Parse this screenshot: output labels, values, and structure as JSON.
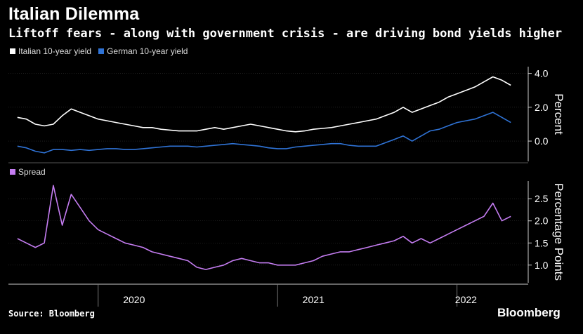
{
  "title": "Italian Dilemma",
  "subtitle": "Liftoff fears - along with government crisis - are driving bond yields higher",
  "source": "Source: Bloomberg",
  "brand": "Bloomberg",
  "colors": {
    "italian": "#ffffff",
    "german": "#2f73d6",
    "spread": "#c57df2",
    "background": "#000000"
  },
  "chart_data": [
    {
      "type": "line",
      "ylabel": "Percent",
      "ylim": [
        -1.2,
        4.4
      ],
      "yticks": [
        "4.0",
        "2.0",
        "0.0"
      ],
      "ytick_values": [
        4.0,
        2.0,
        0.0
      ],
      "legend": "top-left",
      "x": [
        2019.55,
        2019.6,
        2019.65,
        2019.7,
        2019.75,
        2019.8,
        2019.85,
        2019.9,
        2019.95,
        2020.0,
        2020.05,
        2020.1,
        2020.15,
        2020.2,
        2020.25,
        2020.3,
        2020.35,
        2020.4,
        2020.45,
        2020.5,
        2020.55,
        2020.6,
        2020.65,
        2020.7,
        2020.75,
        2020.8,
        2020.85,
        2020.9,
        2020.95,
        2021.0,
        2021.05,
        2021.1,
        2021.15,
        2021.2,
        2021.25,
        2021.3,
        2021.35,
        2021.4,
        2021.45,
        2021.5,
        2021.55,
        2021.6,
        2021.65,
        2021.7,
        2021.75,
        2021.8,
        2021.85,
        2021.9,
        2021.95,
        2022.0,
        2022.05,
        2022.1,
        2022.15,
        2022.2,
        2022.25,
        2022.3
      ],
      "series": [
        {
          "name": "Italian 10-year yield",
          "values": [
            1.4,
            1.3,
            1.0,
            0.9,
            1.0,
            1.5,
            1.9,
            1.7,
            1.5,
            1.3,
            1.2,
            1.1,
            1.0,
            0.9,
            0.8,
            0.8,
            0.7,
            0.65,
            0.6,
            0.6,
            0.6,
            0.7,
            0.8,
            0.7,
            0.8,
            0.9,
            1.0,
            0.9,
            0.8,
            0.7,
            0.6,
            0.55,
            0.6,
            0.7,
            0.75,
            0.8,
            0.9,
            1.0,
            1.1,
            1.2,
            1.3,
            1.5,
            1.7,
            2.0,
            1.7,
            1.9,
            2.1,
            2.3,
            2.6,
            2.8,
            3.0,
            3.2,
            3.5,
            3.8,
            3.6,
            3.3
          ]
        },
        {
          "name": "German 10-year yield",
          "values": [
            -0.3,
            -0.4,
            -0.6,
            -0.7,
            -0.5,
            -0.5,
            -0.55,
            -0.5,
            -0.55,
            -0.5,
            -0.45,
            -0.45,
            -0.5,
            -0.5,
            -0.45,
            -0.4,
            -0.35,
            -0.3,
            -0.3,
            -0.3,
            -0.35,
            -0.3,
            -0.25,
            -0.2,
            -0.15,
            -0.2,
            -0.25,
            -0.3,
            -0.4,
            -0.45,
            -0.45,
            -0.35,
            -0.3,
            -0.25,
            -0.2,
            -0.15,
            -0.15,
            -0.25,
            -0.3,
            -0.3,
            -0.3,
            -0.1,
            0.1,
            0.3,
            0.0,
            0.3,
            0.6,
            0.7,
            0.9,
            1.1,
            1.2,
            1.3,
            1.5,
            1.7,
            1.4,
            1.1
          ]
        }
      ]
    },
    {
      "type": "line",
      "ylabel": "Percentage Points",
      "ylim": [
        0.6,
        2.9
      ],
      "yticks": [
        "2.5",
        "2.0",
        "1.5",
        "1.0"
      ],
      "ytick_values": [
        2.5,
        2.0,
        1.5,
        1.0
      ],
      "legend": "top-left",
      "xticks": [
        "2020",
        "2021",
        "2022"
      ],
      "xtick_values": [
        2020.2,
        2021.2,
        2022.05
      ],
      "series": [
        {
          "name": "Spread",
          "values": [
            1.6,
            1.5,
            1.4,
            1.5,
            2.8,
            1.9,
            2.6,
            2.3,
            2.0,
            1.8,
            1.7,
            1.6,
            1.5,
            1.45,
            1.4,
            1.3,
            1.25,
            1.2,
            1.15,
            1.1,
            0.95,
            0.9,
            0.95,
            1.0,
            1.1,
            1.15,
            1.1,
            1.05,
            1.05,
            1.0,
            1.0,
            1.0,
            1.05,
            1.1,
            1.2,
            1.25,
            1.3,
            1.3,
            1.35,
            1.4,
            1.45,
            1.5,
            1.55,
            1.65,
            1.5,
            1.6,
            1.5,
            1.6,
            1.7,
            1.8,
            1.9,
            2.0,
            2.1,
            2.4,
            2.0,
            2.1
          ]
        }
      ]
    }
  ]
}
